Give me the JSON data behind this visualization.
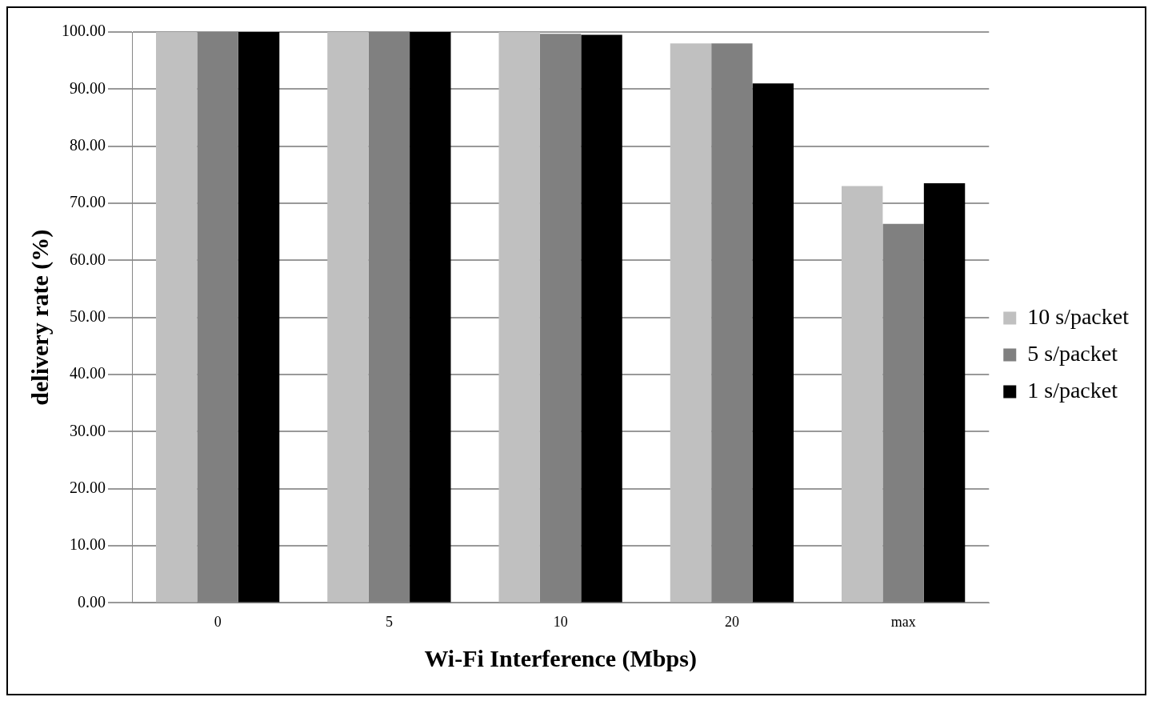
{
  "chart_data": {
    "type": "bar",
    "xlabel": "Wi-Fi Interference (Mbps)",
    "ylabel": "delivery rate (%)",
    "categories": [
      "0",
      "5",
      "10",
      "20",
      "max"
    ],
    "series": [
      {
        "name": "10 s/packet",
        "color": "#c0c0c0",
        "values": [
          100,
          100,
          100,
          98,
          73
        ]
      },
      {
        "name": "5 s/packet",
        "color": "#808080",
        "values": [
          100,
          100,
          99.7,
          98,
          66.4
        ]
      },
      {
        "name": "1 s/packet",
        "color": "#000000",
        "values": [
          100,
          100,
          99.5,
          91,
          73.5
        ]
      }
    ],
    "ylim": [
      0,
      100
    ],
    "yticks": [
      {
        "value": 0,
        "label": "0.00"
      },
      {
        "value": 10,
        "label": "10.00"
      },
      {
        "value": 20,
        "label": "20.00"
      },
      {
        "value": 30,
        "label": "30.00"
      },
      {
        "value": 40,
        "label": "40.00"
      },
      {
        "value": 50,
        "label": "50.00"
      },
      {
        "value": 60,
        "label": "60.00"
      },
      {
        "value": 70,
        "label": "70.00"
      },
      {
        "value": 80,
        "label": "80.00"
      },
      {
        "value": 90,
        "label": "90.00"
      },
      {
        "value": 100,
        "label": "100.00"
      }
    ],
    "grid": "y",
    "legend": "right"
  }
}
